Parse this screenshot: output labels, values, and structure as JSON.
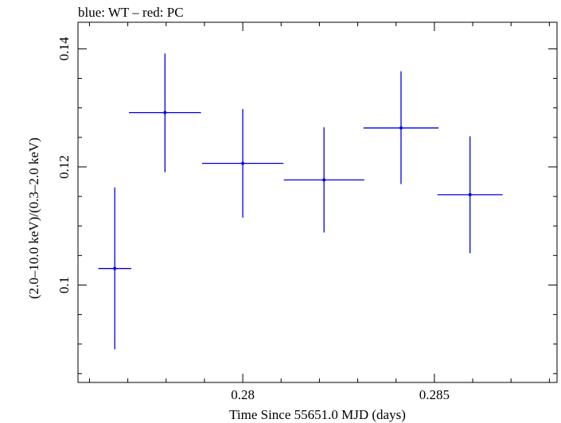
{
  "chart_data": {
    "type": "scatter",
    "title": "blue: WT – red: PC",
    "xlabel": "Time Since 55651.0 MJD (days)",
    "ylabel": "(2.0–10.0 keV)/(0.3–2.0 keV)",
    "xlim": [
      0.2757,
      0.2882
    ],
    "ylim": [
      0.0835,
      0.1445
    ],
    "x_ticks": [
      0.28,
      0.285
    ],
    "x_tick_labels": [
      "0.28",
      "0.285"
    ],
    "y_ticks": [
      0.1,
      0.12,
      0.14
    ],
    "y_tick_labels": [
      "0.1",
      "0.12",
      "0.14"
    ],
    "grid": false,
    "series": [
      {
        "name": "WT",
        "color": "#0000e6",
        "points": [
          {
            "x": 0.27666,
            "xerr": 0.00043,
            "y": 0.1028,
            "yerr_low": 0.0137,
            "yerr_high": 0.0137
          },
          {
            "x": 0.27797,
            "xerr": 0.00094,
            "y": 0.1292,
            "yerr_low": 0.0101,
            "yerr_high": 0.01
          },
          {
            "x": 0.28,
            "xerr": 0.00106,
            "y": 0.1206,
            "yerr_low": 0.0092,
            "yerr_high": 0.0092
          },
          {
            "x": 0.28212,
            "xerr": 0.00105,
            "y": 0.1178,
            "yerr_low": 0.0089,
            "yerr_high": 0.0089
          },
          {
            "x": 0.28413,
            "xerr": 0.00098,
            "y": 0.1266,
            "yerr_low": 0.0095,
            "yerr_high": 0.0096
          },
          {
            "x": 0.28593,
            "xerr": 0.00085,
            "y": 0.1153,
            "yerr_low": 0.0099,
            "yerr_high": 0.0099
          }
        ]
      }
    ]
  }
}
